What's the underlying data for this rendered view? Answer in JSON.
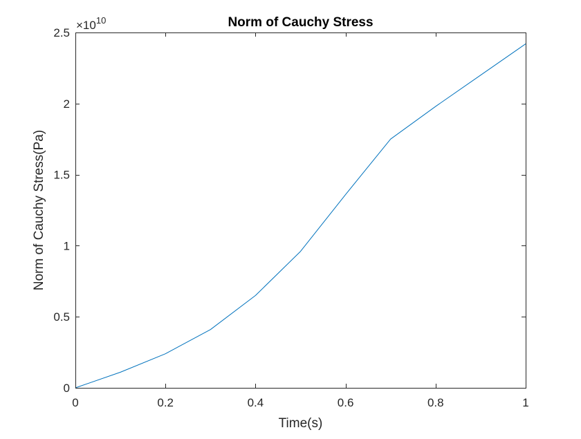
{
  "chart_data": {
    "type": "line",
    "title": "Norm of Cauchy Stress",
    "xlabel": "Time(s)",
    "ylabel": "Norm of Cauchy Stress(Pa)",
    "y_exponent_label": "×10",
    "y_exponent_power": "10",
    "xlim": [
      0,
      1
    ],
    "ylim": [
      0,
      2.5
    ],
    "y_scale_factor": 10000000000,
    "x_ticks": [
      0,
      0.2,
      0.4,
      0.6,
      0.8,
      1
    ],
    "x_tick_labels": [
      "0",
      "0.2",
      "0.4",
      "0.6",
      "0.8",
      "1"
    ],
    "y_ticks": [
      0,
      0.5,
      1,
      1.5,
      2,
      2.5
    ],
    "y_tick_labels": [
      "0",
      "0.5",
      "1",
      "1.5",
      "2",
      "2.5"
    ],
    "grid": false,
    "box": true,
    "line_color": "#0072BD",
    "axis_color": "#262626",
    "series": [
      {
        "x": [
          0,
          0.1,
          0.2,
          0.3,
          0.4,
          0.5,
          0.6,
          0.7,
          0.8,
          0.9,
          1.0
        ],
        "y": [
          0,
          0.11,
          0.24,
          0.41,
          0.65,
          0.96,
          1.36,
          1.75,
          1.98,
          2.2,
          2.42
        ]
      }
    ]
  }
}
